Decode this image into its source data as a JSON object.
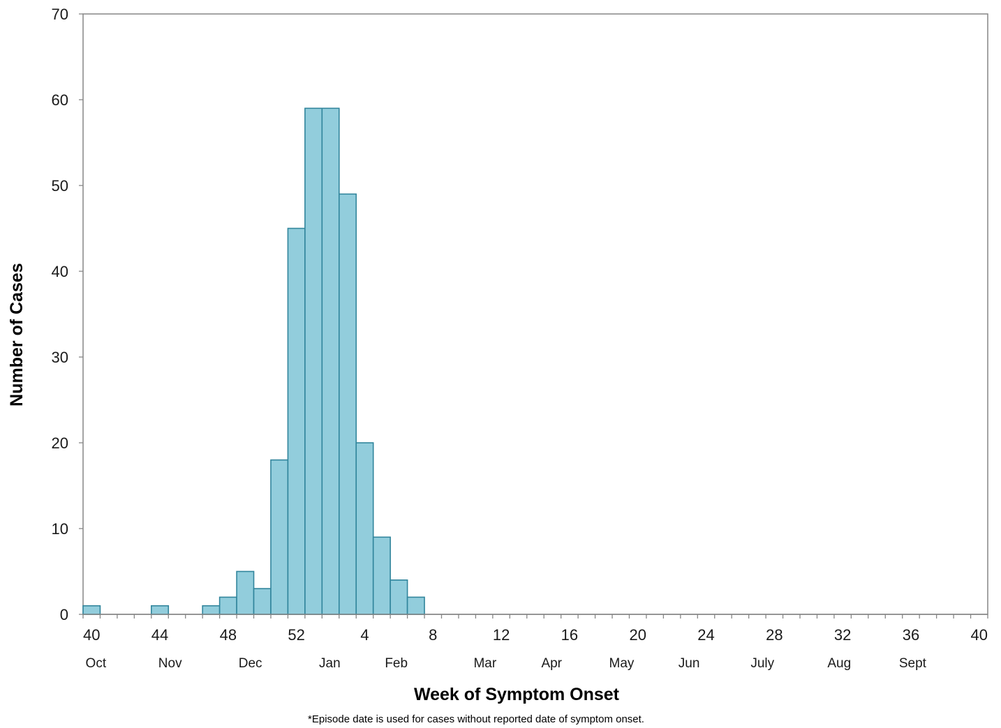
{
  "chart_data": {
    "type": "bar",
    "xlabel": "Week of Symptom Onset",
    "ylabel": "Number of Cases",
    "footnote": "*Episode date is used for cases without reported date of symptom onset.",
    "ylim": [
      0,
      70
    ],
    "yticks": [
      "0",
      "10",
      "20",
      "30",
      "40",
      "50",
      "60",
      "70"
    ],
    "week_ticks": [
      "40",
      "44",
      "48",
      "52",
      "4",
      "8",
      "12",
      "16",
      "20",
      "24",
      "28",
      "32",
      "36",
      "40"
    ],
    "month_labels": [
      "Oct",
      "Nov",
      "Dec",
      "Jan",
      "Feb",
      "Mar",
      "Apr",
      "May",
      "Jun",
      "July",
      "Aug",
      "Sept"
    ],
    "month_label_week_index": [
      0.75,
      5.1,
      9.8,
      14.45,
      18.35,
      23.55,
      27.45,
      31.55,
      35.5,
      39.8,
      44.3,
      48.6
    ],
    "n_weeks": 53,
    "grid": false,
    "legend": "none",
    "color": "#92cddc",
    "edge_color": "#31859c",
    "bars": [
      {
        "week_index": 0,
        "value": 1
      },
      {
        "week_index": 4,
        "value": 1
      },
      {
        "week_index": 7,
        "value": 1
      },
      {
        "week_index": 8,
        "value": 2
      },
      {
        "week_index": 9,
        "value": 5
      },
      {
        "week_index": 10,
        "value": 3
      },
      {
        "week_index": 11,
        "value": 18
      },
      {
        "week_index": 12,
        "value": 45
      },
      {
        "week_index": 13,
        "value": 59
      },
      {
        "week_index": 14,
        "value": 59
      },
      {
        "week_index": 15,
        "value": 49
      },
      {
        "week_index": 16,
        "value": 20
      },
      {
        "week_index": 17,
        "value": 9
      },
      {
        "week_index": 18,
        "value": 4
      },
      {
        "week_index": 19,
        "value": 2
      }
    ]
  }
}
